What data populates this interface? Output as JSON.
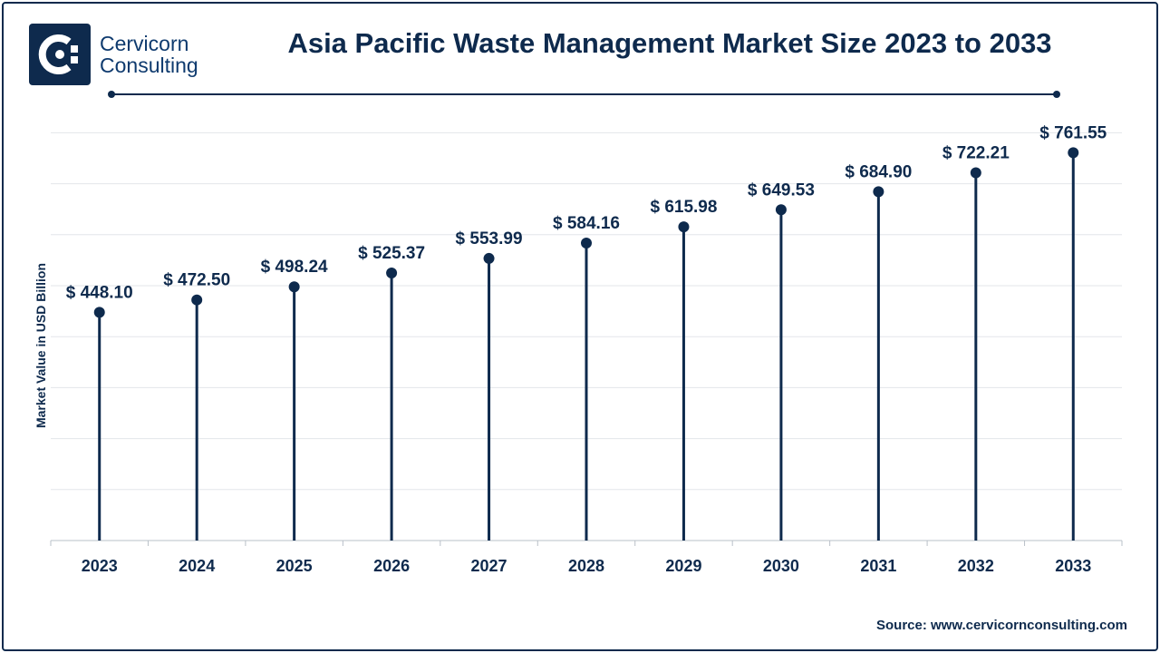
{
  "brand": {
    "line1": "Cervicorn",
    "line2": "Consulting",
    "logo_icon": "cervicorn-logo-icon",
    "color": "#0e2a4d"
  },
  "source": "Source: www.cervicornconsulting.com",
  "chart_data": {
    "type": "lollipop",
    "title": "Asia Pacific Waste Management Market Size 2023 to 2033",
    "xlabel": "",
    "ylabel": "Market Value in USD Billion",
    "categories": [
      "2023",
      "2024",
      "2025",
      "2026",
      "2027",
      "2028",
      "2029",
      "2030",
      "2031",
      "2032",
      "2033"
    ],
    "values": [
      448.1,
      472.5,
      498.24,
      525.37,
      553.99,
      584.16,
      615.98,
      649.53,
      684.9,
      722.21,
      761.55
    ],
    "value_labels": [
      "$ 448.10",
      "$ 472.50",
      "$ 498.24",
      "$ 525.37",
      "$ 553.99",
      "$ 584.16",
      "$ 615.98",
      "$ 649.53",
      "$ 684.90",
      "$ 722.21",
      "$ 761.55"
    ],
    "ylim": [
      0,
      800
    ],
    "grid": true,
    "colors": {
      "mark": "#0e2a4d",
      "text": "#0e2a4d",
      "grid": "#e3e6ea"
    }
  }
}
